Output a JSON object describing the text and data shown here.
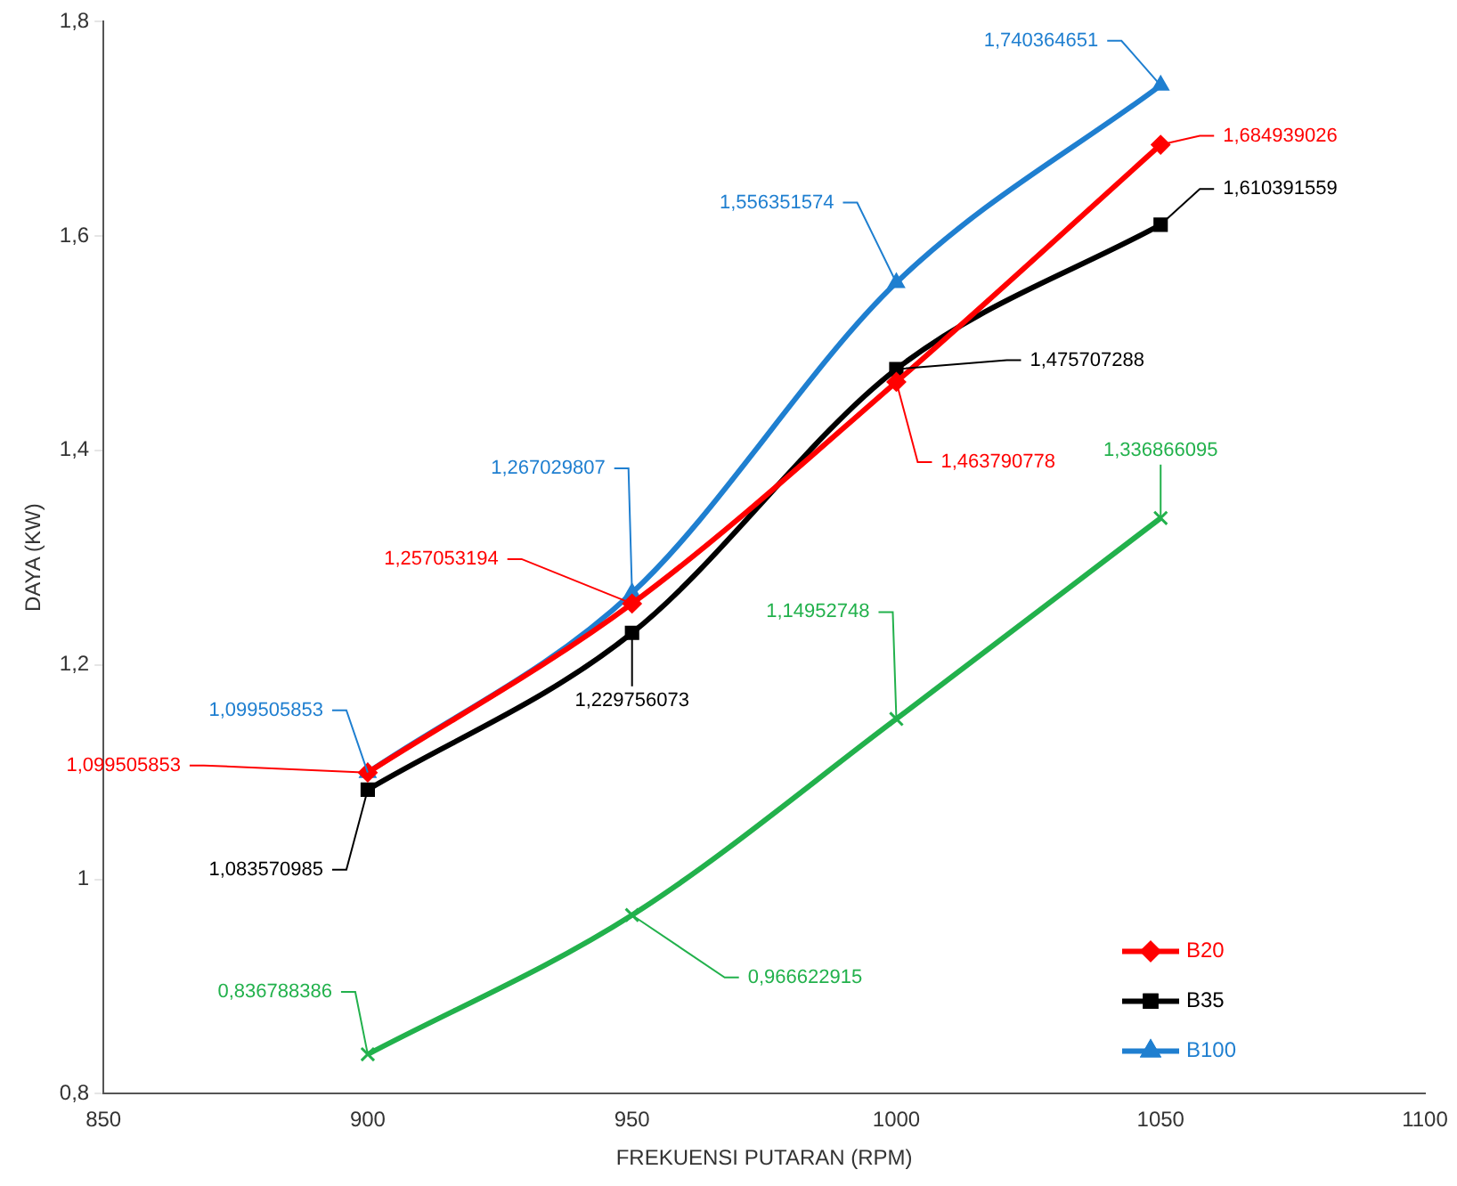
{
  "chart_data": {
    "type": "line",
    "xlabel": "FREKUENSI PUTARAN (RPM)",
    "ylabel": "DAYA (KW)",
    "xlim": [
      850,
      1100
    ],
    "xticks": [
      850,
      900,
      950,
      1000,
      1050,
      1100
    ],
    "ylim": [
      0.8,
      1.8
    ],
    "yticks": [
      {
        "value": 0.8,
        "label": "0,8"
      },
      {
        "value": 1,
        "label": "1"
      },
      {
        "value": 1.2,
        "label": "1,2"
      },
      {
        "value": 1.4,
        "label": "1,4"
      },
      {
        "value": 1.6,
        "label": "1,6"
      },
      {
        "value": 1.8,
        "label": "1,8"
      }
    ],
    "x": [
      900,
      950,
      1000,
      1050
    ],
    "grid": false,
    "legend": "bottom right",
    "series": [
      {
        "name": "B20",
        "color": "#ff0000",
        "marker": "diamond",
        "values": [
          1.099505853,
          1.257053194,
          1.463790778,
          1.684939026
        ],
        "value_labels": [
          "1,099505853",
          "1,257053194",
          "1,463790778",
          "1,684939026"
        ]
      },
      {
        "name": "B35",
        "color": "#000000",
        "marker": "square",
        "values": [
          1.083570985,
          1.229756073,
          1.475707288,
          1.610391559
        ],
        "value_labels": [
          "1,083570985",
          "1,229756073",
          "1,475707288",
          "1,610391559"
        ]
      },
      {
        "name": "B100",
        "color": "#1f7fd0",
        "marker": "triangle",
        "values": [
          1.099505853,
          1.267029807,
          1.556351574,
          1.740364651
        ],
        "value_labels": [
          "1,099505853",
          "1,267029807",
          "1,556351574",
          "1,740364651"
        ]
      },
      {
        "color": "#22b14c",
        "marker": "cross",
        "values": [
          0.836788386,
          0.966622915,
          1.14952748,
          1.336866095
        ],
        "value_labels": [
          "0,836788386",
          "0,966622915",
          "1,14952748",
          "1,336866095"
        ]
      }
    ]
  }
}
